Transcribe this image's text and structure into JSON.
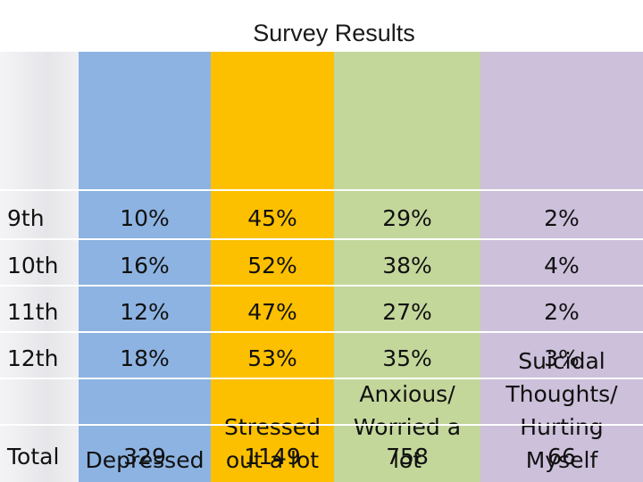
{
  "chart_data": {
    "type": "table",
    "title": "Survey Results",
    "columns": [
      {
        "label": "Depressed",
        "color": "#8db3e2"
      },
      {
        "label": "Stressed out a lot",
        "color": "#fcc000"
      },
      {
        "label": "Anxious/ Worried a lot",
        "color": "#c4d79b"
      },
      {
        "label": "Suicidal Thoughts/ Hurting Myself",
        "color": "#ccc0da"
      }
    ],
    "rows": [
      {
        "label": "9th",
        "values": [
          "10%",
          "45%",
          "29%",
          "2%"
        ]
      },
      {
        "label": "10th",
        "values": [
          "16%",
          "52%",
          "38%",
          "4%"
        ]
      },
      {
        "label": "11th",
        "values": [
          "12%",
          "47%",
          "27%",
          "2%"
        ]
      },
      {
        "label": "12th",
        "values": [
          "18%",
          "53%",
          "35%",
          "3%"
        ]
      },
      {
        "label": "",
        "values": [
          "",
          "",
          "",
          ""
        ]
      },
      {
        "label": "Total",
        "values": [
          "329",
          "1149",
          "758",
          "66"
        ]
      }
    ],
    "header_lines": [
      "Depressed",
      "Stressed\nout a lot",
      "Anxious/\nWorried a\nlot",
      "Suicidal\nThoughts/\nHurting\nMyself"
    ]
  }
}
